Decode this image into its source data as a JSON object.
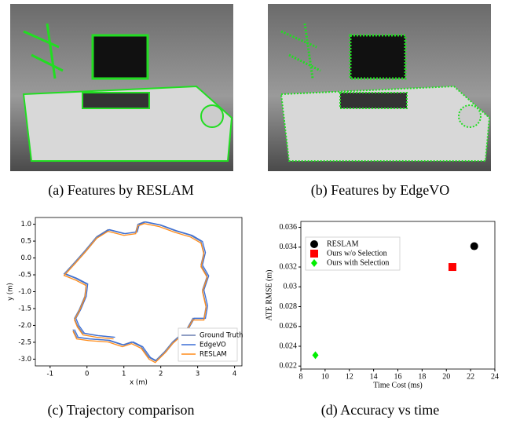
{
  "captions": [
    "(a) Features by RESLAM",
    "(b) Features by EdgeVO",
    "(c) Trajectory comparison",
    "(d) Accuracy vs time"
  ],
  "chart_data": [
    {
      "type": "line",
      "xlabel": "x (m)",
      "ylabel": "y (m)",
      "xlim": [
        -1.4,
        4.2
      ],
      "ylim": [
        -3.2,
        1.2
      ],
      "xticks": [
        -1,
        0,
        1,
        2,
        3,
        4
      ],
      "yticks": [
        {
          "value": 1,
          "label": "1.0"
        },
        0.5,
        {
          "value": 0,
          "label": "0.0"
        },
        -0.5,
        {
          "value": -1,
          "label": "-1.0"
        },
        -1.5,
        {
          "value": -2,
          "label": "-2.0"
        },
        -2.5,
        {
          "value": -3,
          "label": "-3.0"
        }
      ],
      "legend": "lower right",
      "series": [
        {
          "name": "Ground Truth",
          "color": "#6a7fb0",
          "x": [
            0.72,
            0.26,
            -0.11,
            -0.26,
            -0.34,
            -0.21,
            -0.06,
            -0.02,
            -0.32,
            -0.62,
            -0.36,
            -0.06,
            0.26,
            0.57,
            1.0,
            1.32,
            1.38,
            1.55,
            1.96,
            2.38,
            2.81,
            3.09,
            3.17,
            3.09,
            3.26,
            3.13,
            3.23,
            3.17,
            2.87,
            2.7,
            2.32,
            2.11,
            1.85,
            1.68,
            1.47,
            1.21,
            0.96,
            0.57,
            0.04,
            -0.28,
            -0.38
          ],
          "values": [
            -2.35,
            -2.3,
            -2.23,
            -2.0,
            -1.79,
            -1.53,
            -1.14,
            -0.77,
            -0.6,
            -0.47,
            -0.16,
            0.21,
            0.63,
            0.84,
            0.72,
            0.77,
            1.0,
            1.07,
            0.98,
            0.81,
            0.67,
            0.49,
            0.16,
            -0.21,
            -0.53,
            -0.95,
            -1.42,
            -1.79,
            -1.79,
            -2.12,
            -2.49,
            -2.77,
            -3.05,
            -2.95,
            -2.63,
            -2.49,
            -2.58,
            -2.44,
            -2.4,
            -2.35,
            -2.12
          ]
        },
        {
          "name": "EdgeVO",
          "color": "#3b6fd6",
          "x": [
            0.76,
            0.3,
            -0.07,
            -0.22,
            -0.3,
            -0.17,
            -0.02,
            0.02,
            -0.28,
            -0.58,
            -0.32,
            -0.02,
            0.3,
            0.61,
            1.04,
            1.36,
            1.42,
            1.59,
            2.0,
            2.42,
            2.85,
            3.13,
            3.21,
            3.13,
            3.3,
            3.17,
            3.27,
            3.21,
            2.91,
            2.74,
            2.36,
            2.15,
            1.89,
            1.72,
            1.51,
            1.25,
            1.0,
            0.61,
            0.08,
            -0.24,
            -0.34
          ],
          "values": [
            -2.35,
            -2.3,
            -2.23,
            -2.0,
            -1.79,
            -1.53,
            -1.14,
            -0.77,
            -0.6,
            -0.47,
            -0.16,
            0.21,
            0.63,
            0.84,
            0.72,
            0.77,
            1.0,
            1.07,
            0.98,
            0.81,
            0.67,
            0.49,
            0.16,
            -0.21,
            -0.53,
            -0.95,
            -1.42,
            -1.79,
            -1.79,
            -2.12,
            -2.49,
            -2.77,
            -3.05,
            -2.95,
            -2.63,
            -2.49,
            -2.58,
            -2.44,
            -2.4,
            -2.35,
            -2.12
          ]
        },
        {
          "name": "RESLAM",
          "color": "#ff8c1a",
          "x": [
            0.72,
            0.26,
            -0.11,
            -0.26,
            -0.34,
            -0.21,
            -0.06,
            -0.02,
            -0.32,
            -0.62,
            -0.36,
            -0.06,
            0.26,
            0.57,
            1.0,
            1.32,
            1.38,
            1.55,
            1.96,
            2.38,
            2.81,
            3.09,
            3.17,
            3.09,
            3.26,
            3.13,
            3.23,
            3.17,
            2.87,
            2.7,
            2.32,
            2.11,
            1.85,
            1.68,
            1.47,
            1.21,
            0.96,
            0.57,
            0.04,
            -0.28,
            -0.38
          ],
          "values": [
            -2.4,
            -2.35,
            -2.28,
            -2.05,
            -1.84,
            -1.58,
            -1.19,
            -0.82,
            -0.65,
            -0.52,
            -0.21,
            0.16,
            0.58,
            0.79,
            0.67,
            0.72,
            0.95,
            1.02,
            0.93,
            0.76,
            0.62,
            0.44,
            0.11,
            -0.26,
            -0.58,
            -1.0,
            -1.47,
            -1.84,
            -1.84,
            -2.17,
            -2.54,
            -2.82,
            -3.1,
            -3.0,
            -2.68,
            -2.54,
            -2.63,
            -2.49,
            -2.45,
            -2.4,
            -2.17
          ]
        }
      ]
    },
    {
      "type": "scatter",
      "xlabel": "Time Cost (ms)",
      "ylabel": "ATE RMSE (m)",
      "xlim": [
        8,
        24
      ],
      "ylim": [
        0.0217,
        0.0366
      ],
      "xticks": [
        8,
        10,
        12,
        14,
        16,
        18,
        20,
        22,
        24
      ],
      "yticks": [
        0.022,
        0.024,
        0.026,
        0.028,
        0.03,
        0.032,
        0.034,
        0.036
      ],
      "legend": "upper left",
      "series": [
        {
          "name": "RESLAM",
          "color": "#000000",
          "marker": "circle",
          "x": [
            22.3
          ],
          "values": [
            0.0341
          ]
        },
        {
          "name": "Ours w/o Selection",
          "color": "#ff0000",
          "marker": "square",
          "x": [
            20.5
          ],
          "values": [
            0.032
          ]
        },
        {
          "name": "Ours with Selection",
          "color": "#00ee00",
          "marker": "diamond",
          "x": [
            9.2
          ],
          "values": [
            0.0231
          ]
        }
      ]
    }
  ]
}
